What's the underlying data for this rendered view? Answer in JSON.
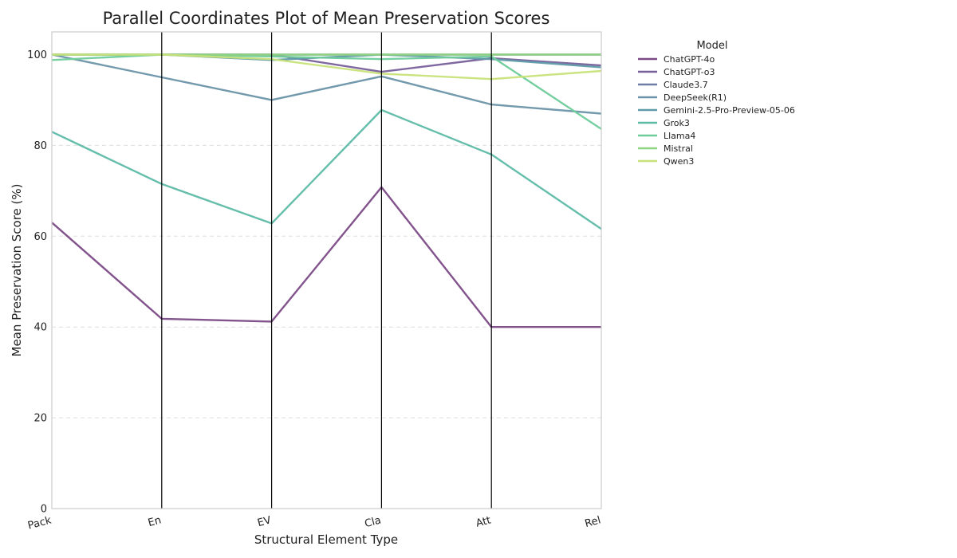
{
  "chart_data": {
    "type": "line",
    "subtype": "parallel-coordinates",
    "title": "Parallel Coordinates Plot of Mean Preservation Scores",
    "xlabel": "Structural Element Type",
    "ylabel": "Mean Preservation Score (%)",
    "categories": [
      "Pack",
      "En",
      "EV",
      "Cla",
      "Att",
      "Rel"
    ],
    "ylim": [
      0,
      105
    ],
    "yticks": [
      0,
      20,
      40,
      60,
      80,
      100
    ],
    "grid": "horizontal dashed",
    "legend_title": "Model",
    "legend_placement": "outside right, top",
    "series": [
      {
        "name": "ChatGPT-4o",
        "color": "#7b4a86",
        "values": [
          63,
          41.8,
          41.2,
          70.8,
          40,
          40
        ]
      },
      {
        "name": "ChatGPT-o3",
        "color": "#77609a",
        "values": [
          100,
          100,
          100,
          96.2,
          99.2,
          97.6
        ]
      },
      {
        "name": "Claude3.7",
        "color": "#6e7ea6",
        "values": [
          100,
          100,
          100,
          100,
          100,
          100
        ]
      },
      {
        "name": "DeepSeek(R1)",
        "color": "#6c93a8",
        "values": [
          100,
          95,
          90,
          95.2,
          89,
          87
        ]
      },
      {
        "name": "Gemini-2.5-Pro-Preview-05-06",
        "color": "#5f9aa9",
        "values": [
          100,
          100,
          98.8,
          100,
          99,
          97.2
        ]
      },
      {
        "name": "Grok3",
        "color": "#5dbba6",
        "values": [
          83,
          71.5,
          62.8,
          87.8,
          78,
          61.6
        ]
      },
      {
        "name": "Llama4",
        "color": "#6fcc9b",
        "values": [
          98.8,
          100,
          99.6,
          99,
          99.6,
          83.6
        ]
      },
      {
        "name": "Mistral",
        "color": "#90d580",
        "values": [
          100,
          100,
          100,
          100,
          100,
          100
        ]
      },
      {
        "name": "Qwen3",
        "color": "#c8e27a",
        "values": [
          100,
          100,
          99,
          95.8,
          94.6,
          96.4
        ]
      }
    ]
  }
}
